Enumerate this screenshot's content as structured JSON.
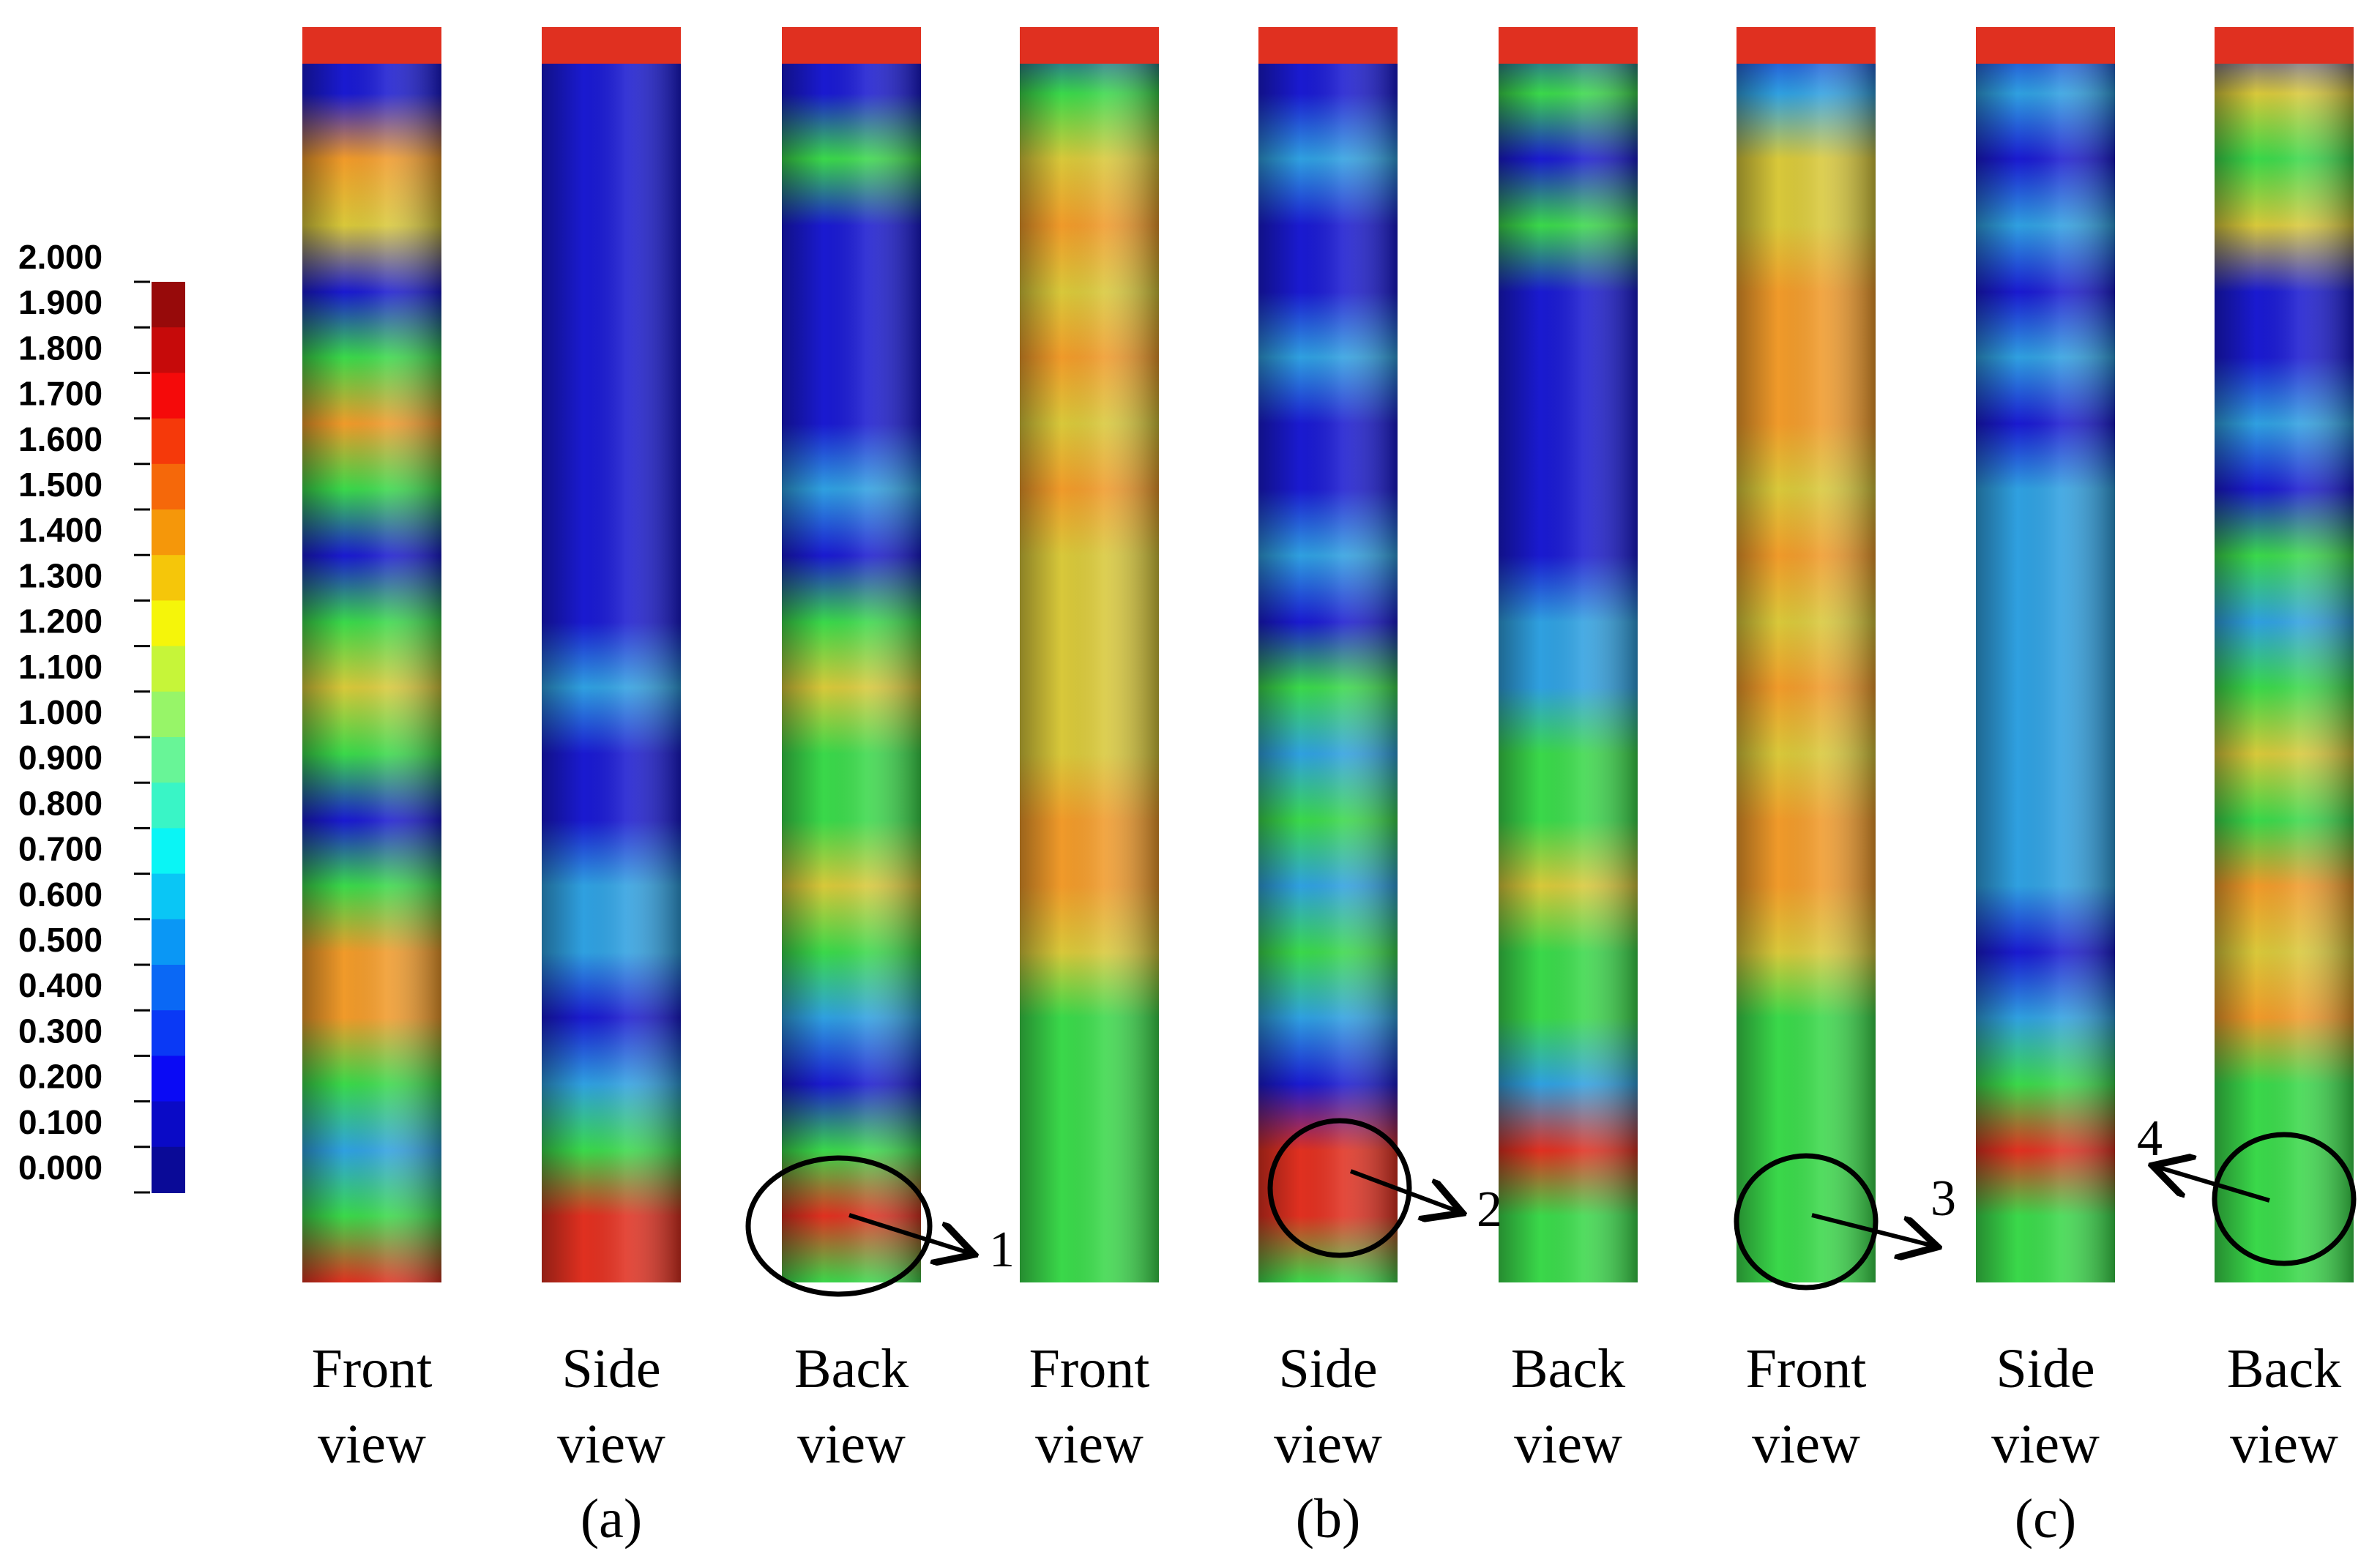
{
  "colorbar": {
    "labels": [
      "2.000",
      "1.900",
      "1.800",
      "1.700",
      "1.600",
      "1.500",
      "1.400",
      "1.300",
      "1.200",
      "1.100",
      "1.000",
      "0.900",
      "0.800",
      "0.700",
      "0.600",
      "0.500",
      "0.400",
      "0.300",
      "0.200",
      "0.100",
      "0.000"
    ]
  },
  "views": [
    {
      "line1": "Front",
      "line2": "view"
    },
    {
      "line1": "Side",
      "line2": "view"
    },
    {
      "line1": "Back",
      "line2": "view"
    },
    {
      "line1": "Front",
      "line2": "view"
    },
    {
      "line1": "Side",
      "line2": "view"
    },
    {
      "line1": "Back",
      "line2": "view"
    },
    {
      "line1": "Front",
      "line2": "view"
    },
    {
      "line1": "Side",
      "line2": "view"
    },
    {
      "line1": "Back",
      "line2": "view"
    }
  ],
  "groups": [
    "(a)",
    "(b)",
    "(c)"
  ],
  "annotations": [
    "1",
    "2",
    "3",
    "4"
  ]
}
